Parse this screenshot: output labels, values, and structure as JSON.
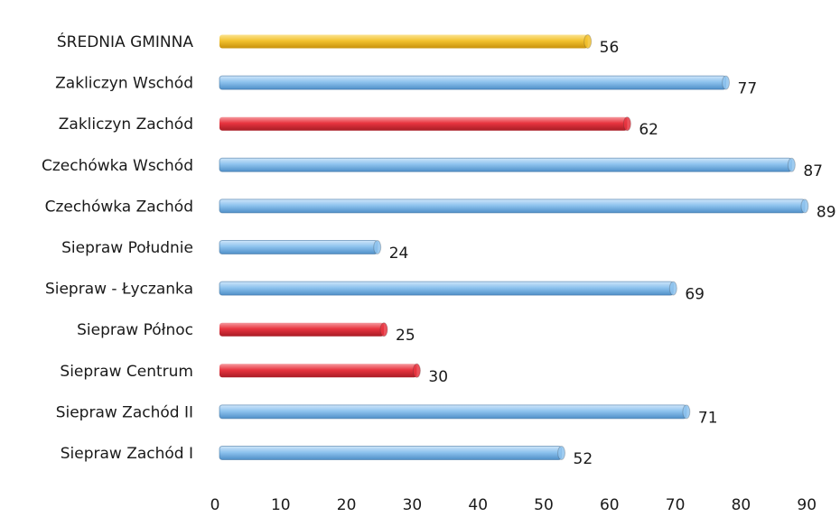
{
  "chart_data": {
    "type": "bar",
    "orientation": "horizontal",
    "categories": [
      "ŚREDNIA GMINNA",
      "Zakliczyn Wschód",
      "Zakliczyn Zachód",
      "Czechówka Wschód",
      "Czechówka Zachód",
      "Siepraw Południe",
      "Siepraw - Łyczanka",
      "Siepraw Północ",
      "Siepraw Centrum",
      "Siepraw Zachód II",
      "Siepraw Zachód I"
    ],
    "values": [
      56,
      77,
      62,
      87,
      89,
      24,
      69,
      25,
      30,
      71,
      52
    ],
    "bar_colors": [
      "yellow",
      "blue",
      "red",
      "blue",
      "blue",
      "blue",
      "blue",
      "red",
      "red",
      "blue",
      "blue"
    ],
    "palette": {
      "yellow": "#f2c12e",
      "blue": "#8ec3ee",
      "red": "#e8343f"
    },
    "xlim": [
      0,
      90
    ],
    "xticks": [
      "0",
      "10",
      "20",
      "30",
      "40",
      "50",
      "60",
      "70",
      "80",
      "90"
    ],
    "data_labels": [
      "56",
      "77",
      "62",
      "87",
      "89",
      "24",
      "69",
      "25",
      "30",
      "71",
      "52"
    ],
    "grid": false,
    "legend": "none"
  }
}
